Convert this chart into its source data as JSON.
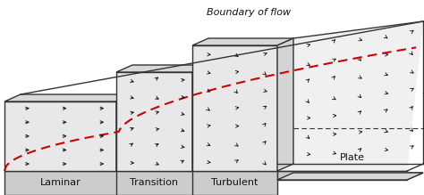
{
  "figsize": [
    4.74,
    2.19
  ],
  "dpi": 100,
  "bg_color": "#ffffff",
  "plate_color": "#cccccc",
  "box_face_color": "#e8e8e8",
  "box_edge_color": "#333333",
  "label_bar_color": "#cccccc",
  "boundary_color": "#cc0000",
  "arrow_color": "#111111",
  "text_color": "#111111",
  "plate_label": "Plate",
  "boundary_label": "Boundary of flow",
  "labels": [
    "Laminar",
    "Transition",
    "Turbulent"
  ],
  "label_fontsize": 8,
  "annot_fontsize": 8
}
